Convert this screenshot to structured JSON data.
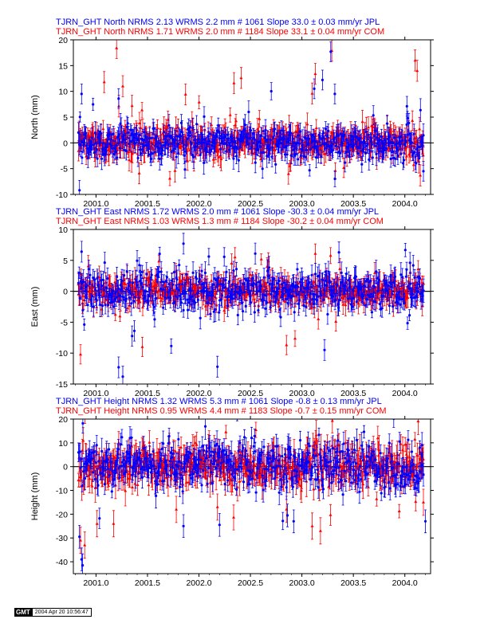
{
  "colors": {
    "jpl": "#0000ff",
    "com": "#ff0000",
    "zero_line": "#000000"
  },
  "chart_data": [
    {
      "type": "scatter",
      "component": "north",
      "ylabel": "North (mm)",
      "ylim": [
        -10,
        20
      ],
      "yticks": [
        "-10",
        "-5",
        "0",
        "5",
        "10",
        "15",
        "20"
      ],
      "xlim": [
        2000.78,
        2004.25
      ],
      "xticks": [
        "2001.0",
        "2001.5",
        "2002.0",
        "2002.5",
        "2003.0",
        "2003.5",
        "2004.0"
      ],
      "series": [
        {
          "name": "JPL",
          "header": "TJRN_GHT North NRMS 2.13 WRMS  2.2 mm # 1061 Slope   33.0 ±  0.03 mm/yr JPL",
          "count": 1061,
          "scatter": 1.6,
          "error": 1.6
        },
        {
          "name": "COM",
          "header": "TJRN_GHT North NRMS 1.71 WRMS  2.0 mm # 1184 Slope   33.1 ±  0.04 mm/yr COM",
          "count": 1184,
          "scatter": 1.5,
          "error": 1.7
        }
      ],
      "outliers": {
        "JPL": [
          [
            2000.84,
            -9.2
          ],
          [
            2000.86,
            9.5
          ],
          [
            2001.22,
            8.6
          ],
          [
            2002.05,
            5.1
          ],
          [
            2003.12,
            10.5
          ],
          [
            2003.2,
            12.2
          ],
          [
            2003.28,
            17.7
          ],
          [
            2003.32,
            9.5
          ],
          [
            2004.02,
            7.1
          ],
          [
            2004.18,
            -5.5
          ]
        ],
        "COM": [
          [
            2001.08,
            11.8
          ],
          [
            2001.2,
            18.4
          ],
          [
            2001.26,
            11.0
          ],
          [
            2001.35,
            7.2
          ],
          [
            2001.42,
            -5.9
          ],
          [
            2001.87,
            9.4
          ],
          [
            2002.34,
            11.6
          ],
          [
            2002.41,
            12.6
          ],
          [
            2003.1,
            9.6
          ],
          [
            2003.13,
            13.4
          ],
          [
            2003.29,
            17.9
          ],
          [
            2004.1,
            16.0
          ],
          [
            2004.12,
            14.0
          ],
          [
            2004.15,
            -6.3
          ]
        ]
      }
    },
    {
      "type": "scatter",
      "component": "east",
      "ylabel": "East (mm)",
      "ylim": [
        -15,
        10
      ],
      "yticks": [
        "-15",
        "-10",
        "-5",
        "0",
        "5",
        "10"
      ],
      "xlim": [
        2000.78,
        2004.25
      ],
      "xticks": [
        "2001.0",
        "2001.5",
        "2002.0",
        "2002.5",
        "2003.0",
        "2003.5",
        "2004.0"
      ],
      "series": [
        {
          "name": "JPL",
          "header": "TJRN_GHT East NRMS 1.72 WRMS  2.0 mm # 1061 Slope  -30.3 ±  0.04 mm/yr JPL",
          "count": 1061,
          "scatter": 1.7,
          "error": 1.4
        },
        {
          "name": "COM",
          "header": "TJRN_GHT East NRMS 1.03 WRMS  1.3 mm # 1184 Slope  -30.2 ±  0.04 mm/yr COM",
          "count": 1184,
          "scatter": 1.2,
          "error": 1.3
        }
      ],
      "outliers": {
        "JPL": [
          [
            2000.86,
            6.4
          ],
          [
            2001.22,
            -12.3
          ],
          [
            2001.26,
            -13.8
          ],
          [
            2001.85,
            7.7
          ],
          [
            2002.18,
            -12.2
          ],
          [
            2003.36,
            6.3
          ],
          [
            2003.22,
            -9.5
          ],
          [
            2004.05,
            4.6
          ]
        ],
        "COM": [
          [
            2000.85,
            -10.2
          ],
          [
            2001.45,
            -9.0
          ],
          [
            2002.35,
            5.5
          ],
          [
            2002.85,
            -8.7
          ],
          [
            2003.33,
            -4.9
          ],
          [
            2003.13,
            6.1
          ],
          [
            2004.17,
            -2.4
          ]
        ]
      }
    },
    {
      "type": "scatter",
      "component": "height",
      "ylabel": "Height (mm)",
      "ylim": [
        -45,
        20
      ],
      "yticks": [
        "-40",
        "-30",
        "-20",
        "-10",
        "0",
        "10",
        "20"
      ],
      "xlim": [
        2000.78,
        2004.25
      ],
      "xticks": [
        "2001.0",
        "2001.5",
        "2002.0",
        "2002.5",
        "2003.0",
        "2003.5",
        "2004.0"
      ],
      "series": [
        {
          "name": "JPL",
          "header": "TJRN_GHT Height NRMS 1.32 WRMS  5.3 mm # 1061 Slope  -0.8 ±  0.13 mm/yr JPL",
          "count": 1061,
          "scatter": 5.0,
          "error": 4.0
        },
        {
          "name": "COM",
          "header": "TJRN_GHT Height NRMS 0.95 WRMS  4.4 mm # 1183 Slope  -0.7 ±  0.15 mm/yr COM",
          "count": 1183,
          "scatter": 4.4,
          "error": 4.6
        }
      ],
      "outliers": {
        "JPL": [
          [
            2000.84,
            -29.5
          ],
          [
            2000.86,
            -39.0
          ],
          [
            2000.87,
            -41.5
          ],
          [
            2001.33,
            12.0
          ],
          [
            2001.85,
            -25.0
          ],
          [
            2002.2,
            -24.5
          ],
          [
            2002.86,
            -20.5
          ],
          [
            2002.92,
            -23.0
          ],
          [
            2003.35,
            11.0
          ],
          [
            2004.2,
            -23.0
          ]
        ],
        "COM": [
          [
            2000.85,
            -31.0
          ],
          [
            2000.89,
            -33.0
          ],
          [
            2001.01,
            -24.0
          ],
          [
            2001.17,
            -24.0
          ],
          [
            2001.78,
            -18.0
          ],
          [
            2002.18,
            -17.0
          ],
          [
            2002.85,
            -18.0
          ],
          [
            2003.1,
            -25.0
          ],
          [
            2003.18,
            -27.0
          ],
          [
            2004.18,
            -15.0
          ]
        ]
      }
    }
  ],
  "footer": {
    "logo_text": "GMT",
    "timestamp": "2004 Apr 20 10:56:47"
  }
}
